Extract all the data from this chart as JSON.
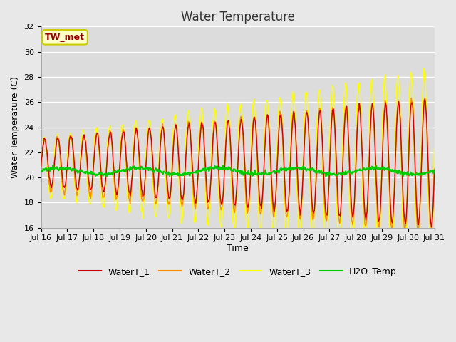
{
  "title": "Water Temperature",
  "xlabel": "Time",
  "ylabel": "Water Temperature (C)",
  "ylim": [
    16,
    32
  ],
  "yticks": [
    16,
    18,
    20,
    22,
    24,
    26,
    28,
    30,
    32
  ],
  "background_color": "#e8e8e8",
  "plot_bg_color": "#dcdcdc",
  "colors": {
    "WaterT_1": "#cc0000",
    "WaterT_2": "#ff8c00",
    "WaterT_3": "#ffff00",
    "H2O_Temp": "#00cc00"
  },
  "annotation_text": "TW_met",
  "annotation_color": "#990000",
  "annotation_bg": "#ffffcc",
  "annotation_border": "#cccc00",
  "title_fontsize": 12,
  "axis_fontsize": 9,
  "tick_fontsize": 8,
  "n_points": 720,
  "start_day": 16,
  "end_day": 31,
  "seed": 12345
}
